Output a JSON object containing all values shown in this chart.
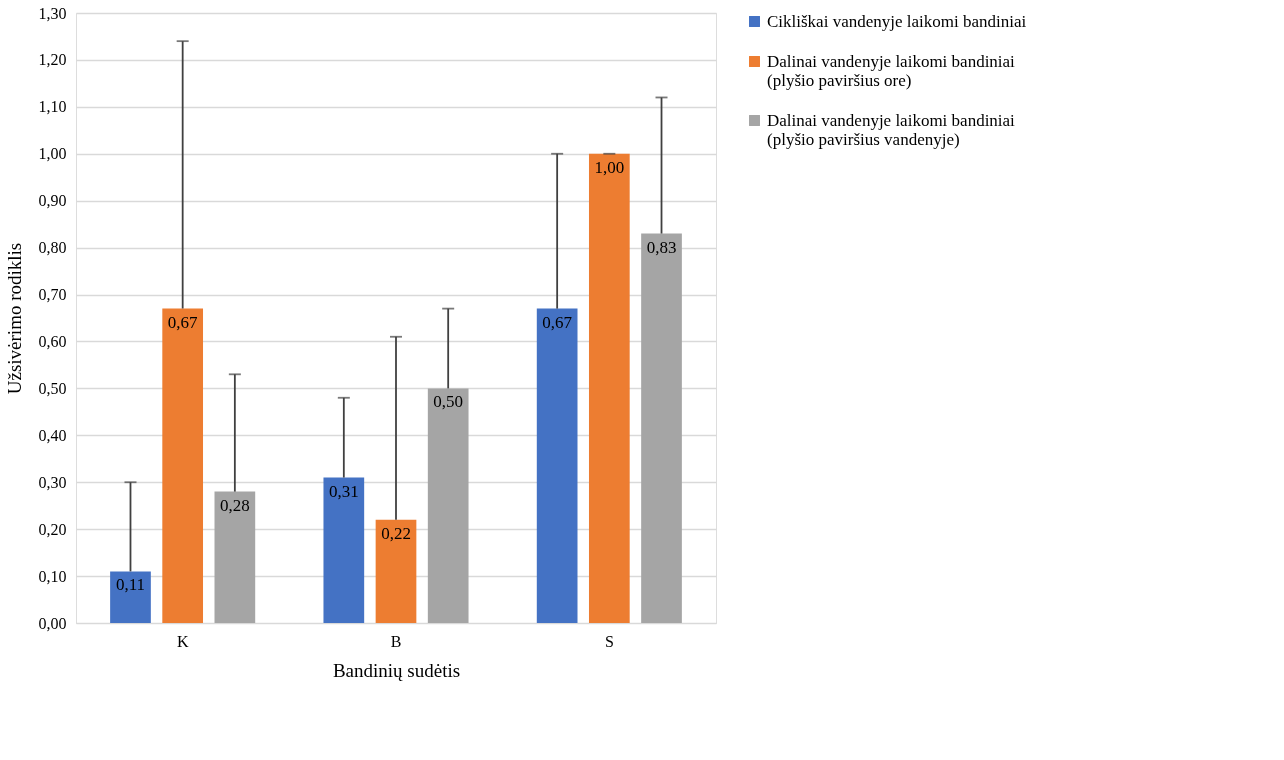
{
  "chart_data": {
    "type": "bar",
    "xlabel": "Bandinių sudėtis",
    "ylabel": "Užsivėrimo rodiklis",
    "categories": [
      "K",
      "B",
      "S"
    ],
    "series": [
      {
        "name": "Cikliškai vandenyje laikomi bandiniai",
        "color": "#4472c4",
        "values": [
          0.11,
          0.31,
          0.67
        ],
        "value_labels": [
          "0,11",
          "0,31",
          "0,67"
        ],
        "errors": [
          [
            0.11,
            0.3
          ],
          [
            0.31,
            0.48
          ],
          [
            0.67,
            1.0
          ]
        ]
      },
      {
        "name": "Dalinai vandenyje laikomi bandiniai (plyšio paviršius ore)",
        "color": "#ed7d31",
        "values": [
          0.67,
          0.22,
          1.0
        ],
        "value_labels": [
          "0,67",
          "0,22",
          "1,00"
        ],
        "errors": [
          [
            0.67,
            1.24
          ],
          [
            0.22,
            0.61
          ],
          [
            1.0,
            1.0
          ]
        ]
      },
      {
        "name": "Dalinai vandenyje laikomi bandiniai (plyšio paviršius vandenyje)",
        "color": "#a5a5a5",
        "values": [
          0.28,
          0.5,
          0.83
        ],
        "value_labels": [
          "0,28",
          "0,50",
          "0,83"
        ],
        "errors": [
          [
            0.28,
            0.53
          ],
          [
            0.5,
            0.67
          ],
          [
            0.83,
            1.12
          ]
        ]
      }
    ],
    "ylim": [
      0,
      1.3
    ],
    "yticks": [
      {
        "value": 0,
        "label": "0,00"
      },
      {
        "value": 0.1,
        "label": "0,10"
      },
      {
        "value": 0.2,
        "label": "0,20"
      },
      {
        "value": 0.3,
        "label": "0,30"
      },
      {
        "value": 0.4,
        "label": "0,40"
      },
      {
        "value": 0.5,
        "label": "0,50"
      },
      {
        "value": 0.6,
        "label": "0,60"
      },
      {
        "value": 0.7,
        "label": "0,70"
      },
      {
        "value": 0.8,
        "label": "0,80"
      },
      {
        "value": 0.9,
        "label": "0,90"
      },
      {
        "value": 1.0,
        "label": "1,00"
      },
      {
        "value": 1.1,
        "label": "1,10"
      },
      {
        "value": 1.2,
        "label": "1,20"
      },
      {
        "value": 1.3,
        "label": "1,30"
      }
    ],
    "grid": "y",
    "legend": "right"
  }
}
